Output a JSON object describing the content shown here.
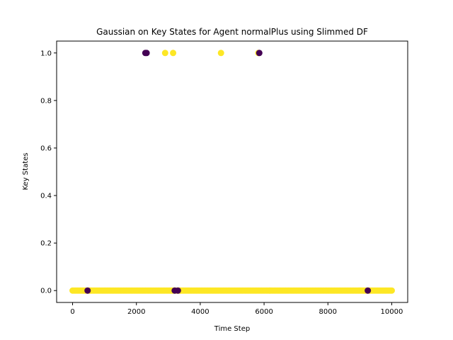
{
  "chart_data": {
    "type": "scatter",
    "title": "Gaussian on Key States for Agent normalPlus using Slimmed DF",
    "xlabel": "Time Step",
    "ylabel": "Key States",
    "xlim": [
      -500,
      10500
    ],
    "ylim": [
      -0.05,
      1.05
    ],
    "xticks": [
      0,
      2000,
      4000,
      6000,
      8000,
      10000
    ],
    "xtick_labels": [
      "0",
      "2000",
      "4000",
      "6000",
      "8000",
      "10000"
    ],
    "yticks": [
      0.0,
      0.2,
      0.4,
      0.6,
      0.8,
      1.0
    ],
    "ytick_labels": [
      "0.0",
      "0.2",
      "0.4",
      "0.6",
      "0.8",
      "1.0"
    ],
    "grid": false,
    "legend": "none",
    "colors": {
      "yellow": "#fde725",
      "purple": "#440154",
      "axis": "#000000"
    },
    "series": [
      {
        "color": "yellow",
        "points": [
          [
            2900,
            1
          ],
          [
            3150,
            1
          ],
          [
            4650,
            1
          ],
          [
            5820,
            1
          ]
        ]
      },
      {
        "color": "purple",
        "points": [
          [
            2280,
            1
          ],
          [
            2320,
            1
          ],
          [
            5850,
            1
          ],
          [
            470,
            0
          ],
          [
            3200,
            0
          ],
          [
            3300,
            0
          ],
          [
            9250,
            0
          ]
        ]
      },
      {
        "color": "yellow",
        "band": {
          "from": 0,
          "to": 10000,
          "y": 0
        },
        "points": []
      }
    ]
  }
}
